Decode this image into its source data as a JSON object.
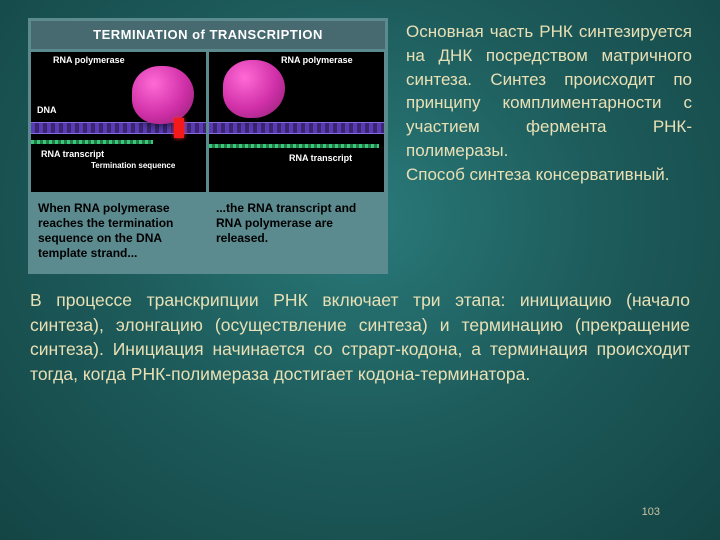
{
  "figure": {
    "title": "TERMINATION of TRANSCRIPTION",
    "labels": {
      "polymerase": "RNA polymerase",
      "dna": "DNA",
      "rna": "RNA transcript",
      "termination": "Termination sequence"
    },
    "caption_left": "When RNA polymerase reaches the termination sequence on the DNA template strand...",
    "caption_right": "...the RNA transcript and RNA polymerase are released.",
    "colors": {
      "panel_bg": "#000000",
      "figure_bg": "#5b8a8f",
      "dna": "#5b3ab5",
      "polymerase": "#d030a8",
      "rna": "#3ac77a",
      "termination": "#f51a1a"
    }
  },
  "paragraph_right_1": "Основная часть РНК синтезируется на ДНК посредством матричного синтеза. Синтез происходит по принципу комплиментарности с участием фермента РНК-полимеразы.",
  "paragraph_right_2": "Способ синтеза консервативный.",
  "paragraph_bottom": "В процессе транскрипции РНК включает три этапа: инициацию (начало синтеза), элонгацию (осуществление синтеза) и терминацию (прекращение синтеза). Инициация начинается со страрт-кодона, а терминация происходит тогда, когда РНК-полимераза достигает кодона-терминатора.",
  "page_number": "103",
  "slide_bg": "#1d5a5a",
  "text_color": "#e8e0b5"
}
